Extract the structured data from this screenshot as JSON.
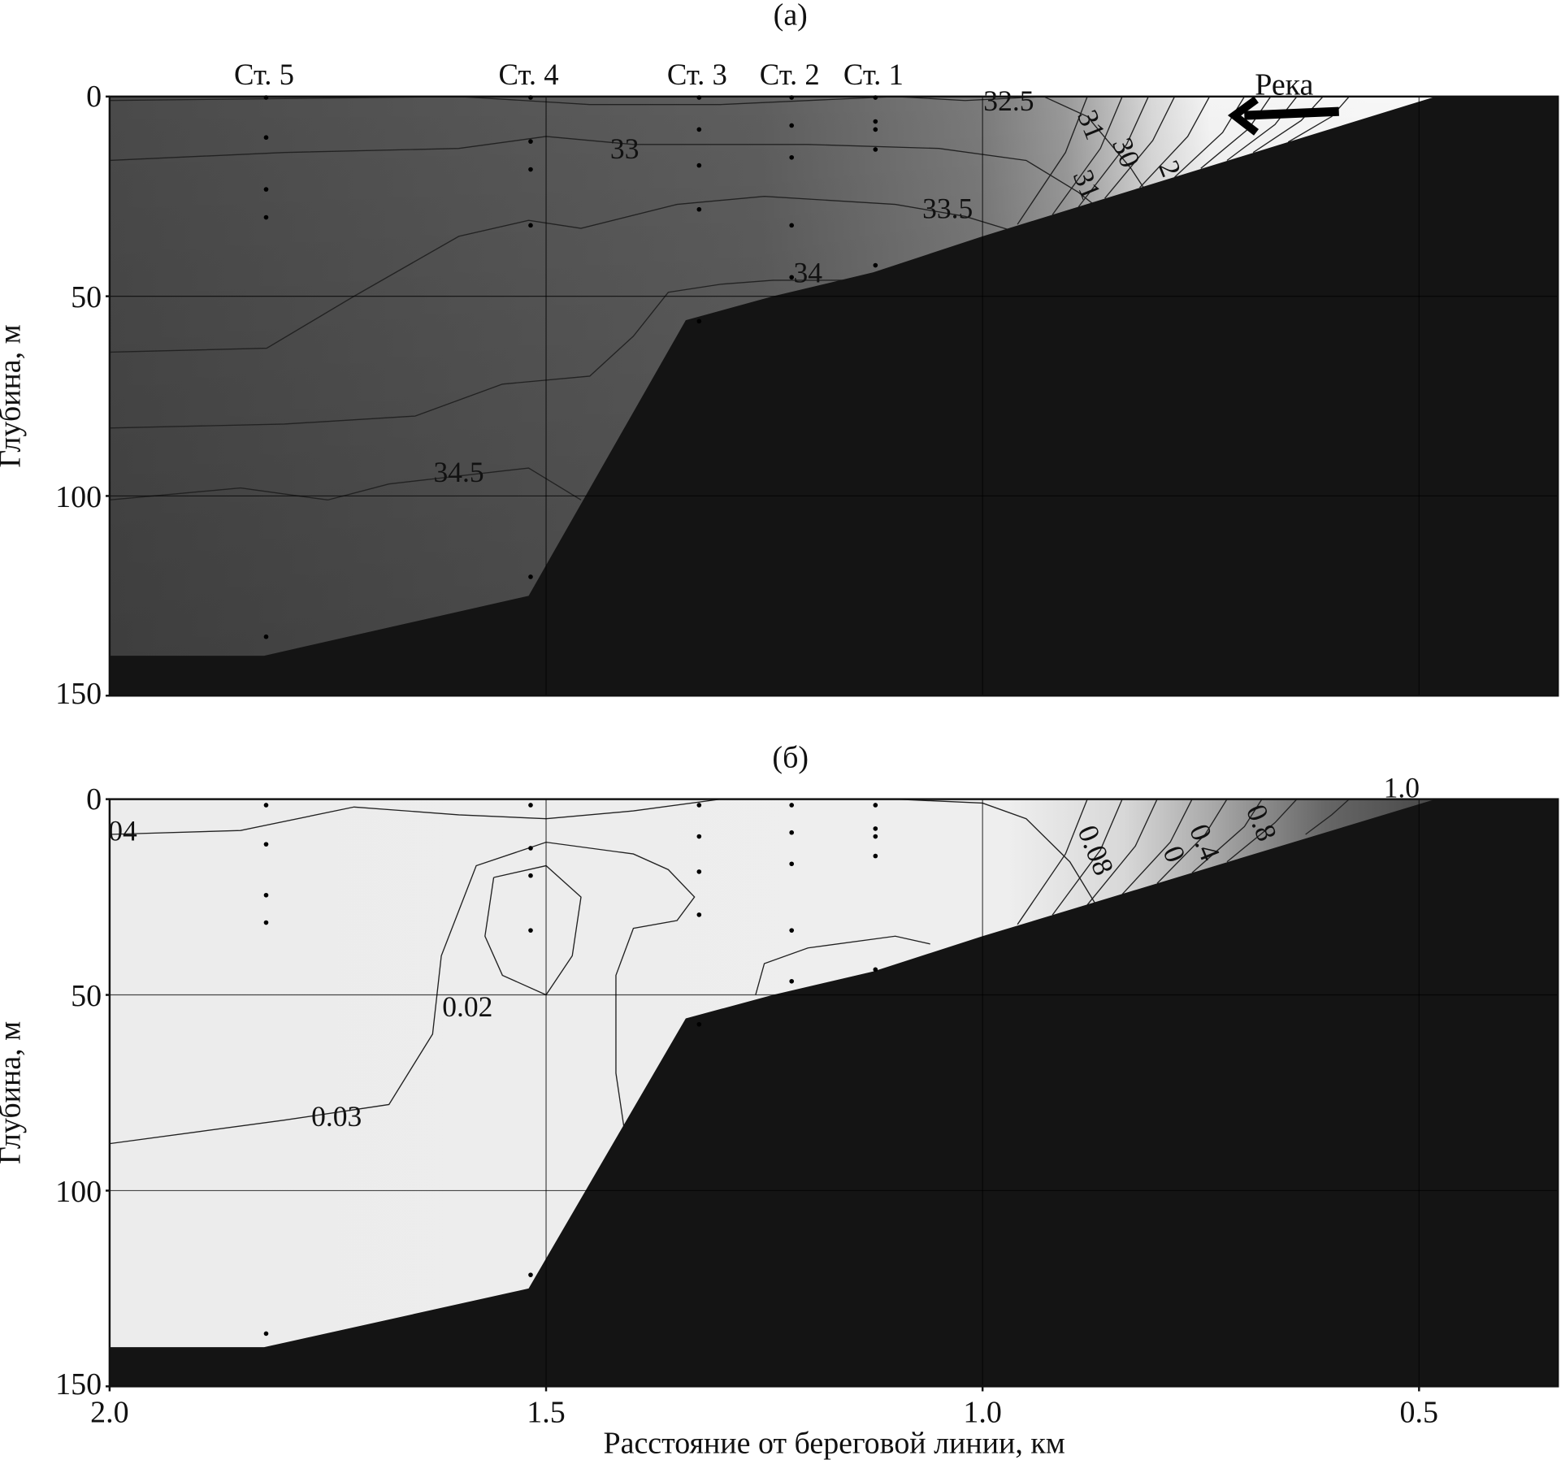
{
  "chart_data": {
    "type": "contour",
    "shared": {
      "xlabel": "Расстояние от береговой линии, км",
      "ylabel": "Глубина, м",
      "xlim": [
        2.0,
        0.34
      ],
      "ylim": [
        0,
        150
      ],
      "x_reversed": true,
      "y_inverted": true,
      "x_ticks": [
        "2.0",
        "1.5",
        "1.0",
        "0.5"
      ],
      "x_tick_values": [
        2.0,
        1.5,
        1.0,
        0.5
      ],
      "y_ticks": [
        "0",
        "50",
        "100",
        "150"
      ],
      "y_tick_values": [
        0,
        50,
        100,
        150
      ],
      "grid": true,
      "bottom_color": "#141414",
      "stations": [
        {
          "label": "Ст. 5",
          "x": 1.823,
          "depths": [
            0,
            10,
            23,
            30,
            135
          ]
        },
        {
          "label": "Ст. 4",
          "x": 1.52,
          "depths": [
            0,
            11,
            18,
            32,
            120
          ]
        },
        {
          "label": "Ст. 3",
          "x": 1.327,
          "depths": [
            0,
            8,
            17,
            28,
            56
          ]
        },
        {
          "label": "Ст. 2",
          "x": 1.221,
          "depths": [
            0,
            7,
            15,
            32,
            45
          ]
        },
        {
          "label": "Ст. 1",
          "x": 1.125,
          "depths": [
            0,
            6,
            8,
            13,
            42
          ]
        }
      ],
      "bathymetry": [
        [
          2.0,
          140
        ],
        [
          1.823,
          140
        ],
        [
          1.52,
          125
        ],
        [
          1.34,
          56
        ],
        [
          1.24,
          50
        ],
        [
          1.125,
          44
        ],
        [
          1.0,
          35
        ],
        [
          0.481,
          0
        ]
      ]
    },
    "panels": [
      {
        "title": "(а)",
        "annotation": "Река",
        "contours": [
          {
            "label": "32.5",
            "label_at": [
              0.97,
              1
            ],
            "points": [
              [
                2.0,
                1
              ],
              [
                1.8,
                0.5
              ],
              [
                1.6,
                0
              ],
              [
                1.45,
                2
              ],
              [
                1.3,
                2
              ],
              [
                1.1,
                0
              ],
              [
                1.02,
                1
              ],
              [
                0.93,
                0
              ],
              [
                0.88,
                5
              ],
              [
                0.83,
                18
              ],
              [
                0.8,
                28
              ]
            ]
          },
          {
            "label": "33",
            "label_at": [
              1.41,
              13
            ],
            "points": [
              [
                2.0,
                16
              ],
              [
                1.8,
                14
              ],
              [
                1.6,
                13
              ],
              [
                1.5,
                10
              ],
              [
                1.4,
                12
              ],
              [
                1.2,
                12
              ],
              [
                1.05,
                13
              ],
              [
                0.95,
                16
              ],
              [
                0.89,
                24
              ],
              [
                0.85,
                31
              ]
            ]
          },
          {
            "label": "33.5",
            "label_at": [
              1.04,
              28
            ],
            "points": [
              [
                2.0,
                64
              ],
              [
                1.82,
                63
              ],
              [
                1.72,
                50
              ],
              [
                1.6,
                35
              ],
              [
                1.52,
                31
              ],
              [
                1.46,
                33
              ],
              [
                1.35,
                27
              ],
              [
                1.25,
                25
              ],
              [
                1.1,
                27
              ],
              [
                1.02,
                30
              ],
              [
                0.96,
                34
              ]
            ]
          },
          {
            "label": "34",
            "label_at": [
              1.2,
              44
            ],
            "points": [
              [
                2.0,
                83
              ],
              [
                1.8,
                82
              ],
              [
                1.65,
                80
              ],
              [
                1.55,
                72
              ],
              [
                1.45,
                70
              ],
              [
                1.4,
                60
              ],
              [
                1.36,
                49
              ],
              [
                1.3,
                47
              ],
              [
                1.24,
                46
              ],
              [
                1.16,
                46
              ],
              [
                1.12,
                47
              ]
            ]
          },
          {
            "label": "34.5",
            "label_at": [
              1.6,
              94
            ],
            "points": [
              [
                2.0,
                101
              ],
              [
                1.85,
                98
              ],
              [
                1.75,
                101
              ],
              [
                1.68,
                97
              ],
              [
                1.52,
                93
              ],
              [
                1.46,
                101
              ]
            ]
          },
          {
            "label": "31",
            "label_at": [
              0.875,
              7
            ],
            "points": [
              [
                0.88,
                0
              ],
              [
                0.905,
                14
              ],
              [
                0.96,
                32
              ]
            ]
          },
          {
            "label": "30",
            "label_at": [
              0.835,
              14
            ],
            "points": [
              [
                0.84,
                0
              ],
              [
                0.865,
                13
              ],
              [
                0.92,
                29.6
              ]
            ]
          },
          {
            "label": "31",
            "label_at": [
              0.88,
              22
            ],
            "points": [
              [
                0.81,
                0
              ],
              [
                0.835,
                12
              ],
              [
                0.89,
                27.6
              ]
            ]
          },
          {
            "label": "",
            "points": [
              [
                0.78,
                0
              ],
              [
                0.805,
                11
              ],
              [
                0.86,
                25.5
              ]
            ]
          },
          {
            "label": "2",
            "label_at": [
              0.785,
              18
            ],
            "points": [
              [
                0.74,
                0
              ],
              [
                0.765,
                10
              ],
              [
                0.82,
                22.8
              ]
            ]
          },
          {
            "label": "",
            "points": [
              [
                0.7,
                0
              ],
              [
                0.725,
                9
              ],
              [
                0.78,
                20.2
              ]
            ]
          },
          {
            "label": "",
            "points": [
              [
                0.67,
                0
              ],
              [
                0.695,
                8
              ],
              [
                0.75,
                18
              ]
            ]
          },
          {
            "label": "",
            "points": [
              [
                0.64,
                0
              ],
              [
                0.665,
                7
              ],
              [
                0.72,
                16
              ]
            ]
          },
          {
            "label": "",
            "points": [
              [
                0.61,
                0
              ],
              [
                0.635,
                6
              ],
              [
                0.69,
                14
              ]
            ]
          },
          {
            "label": "",
            "points": [
              [
                0.58,
                0
              ],
              [
                0.6,
                5
              ],
              [
                0.65,
                11.4
              ]
            ]
          }
        ]
      },
      {
        "title": "(б)",
        "contours": [
          {
            "label": "04",
            "label_at": [
              1.985,
              8
            ],
            "points": [
              [
                2.0,
                9
              ],
              [
                1.85,
                8
              ],
              [
                1.72,
                2
              ],
              [
                1.6,
                4
              ],
              [
                1.5,
                5
              ],
              [
                1.4,
                3
              ],
              [
                1.3,
                0
              ],
              [
                1.1,
                0
              ],
              [
                1.0,
                1
              ],
              [
                0.95,
                5
              ],
              [
                0.9,
                16
              ],
              [
                0.87,
                27
              ]
            ]
          },
          {
            "label": "0.03",
            "label_at": [
              1.74,
              81
            ],
            "points": [
              [
                2.0,
                88
              ],
              [
                1.9,
                85
              ],
              [
                1.8,
                82
              ],
              [
                1.68,
                78
              ],
              [
                1.63,
                60
              ],
              [
                1.62,
                40
              ],
              [
                1.58,
                17
              ],
              [
                1.5,
                11
              ],
              [
                1.4,
                14
              ],
              [
                1.36,
                18
              ],
              [
                1.33,
                25
              ],
              [
                1.35,
                31
              ],
              [
                1.4,
                33
              ],
              [
                1.42,
                45
              ],
              [
                1.42,
                70
              ],
              [
                1.41,
                85
              ]
            ]
          },
          {
            "label": "0.02",
            "label_at": [
              1.59,
              53
            ],
            "points": [
              [
                1.56,
                20
              ],
              [
                1.5,
                17
              ],
              [
                1.46,
                25
              ],
              [
                1.47,
                40
              ],
              [
                1.5,
                50
              ],
              [
                1.55,
                45
              ],
              [
                1.57,
                35
              ],
              [
                1.56,
                20
              ]
            ]
          },
          {
            "label": "",
            "points": [
              [
                1.26,
                50
              ],
              [
                1.25,
                42
              ],
              [
                1.2,
                38
              ],
              [
                1.1,
                35
              ],
              [
                1.06,
                37
              ]
            ]
          },
          {
            "label": "0.08",
            "label_at": [
              0.87,
              13
            ],
            "points": [
              [
                0.88,
                0
              ],
              [
                0.905,
                14
              ],
              [
                0.96,
                32
              ]
            ]
          },
          {
            "label": "",
            "points": [
              [
                0.84,
                0
              ],
              [
                0.865,
                13
              ],
              [
                0.92,
                29.6
              ]
            ]
          },
          {
            "label": "0",
            "label_at": [
              0.78,
              14
            ],
            "points": [
              [
                0.8,
                0
              ],
              [
                0.825,
                12
              ],
              [
                0.88,
                27
              ]
            ]
          },
          {
            "label": "0.4",
            "label_at": [
              0.745,
              11
            ],
            "points": [
              [
                0.76,
                0
              ],
              [
                0.785,
                11
              ],
              [
                0.84,
                24.3
              ]
            ]
          },
          {
            "label": "",
            "points": [
              [
                0.72,
                0
              ],
              [
                0.745,
                9
              ],
              [
                0.8,
                21.5
              ]
            ]
          },
          {
            "label": "0.8",
            "label_at": [
              0.68,
              6
            ],
            "points": [
              [
                0.68,
                0
              ],
              [
                0.7,
                7
              ],
              [
                0.76,
                18.8
              ]
            ]
          },
          {
            "label": "",
            "points": [
              [
                0.64,
                0
              ],
              [
                0.665,
                6
              ],
              [
                0.72,
                16
              ]
            ]
          },
          {
            "label": "1.0",
            "label_at": [
              0.52,
              -3
            ],
            "points": [
              [
                0.58,
                0
              ],
              [
                0.6,
                4
              ],
              [
                0.63,
                9
              ]
            ]
          }
        ]
      }
    ]
  }
}
